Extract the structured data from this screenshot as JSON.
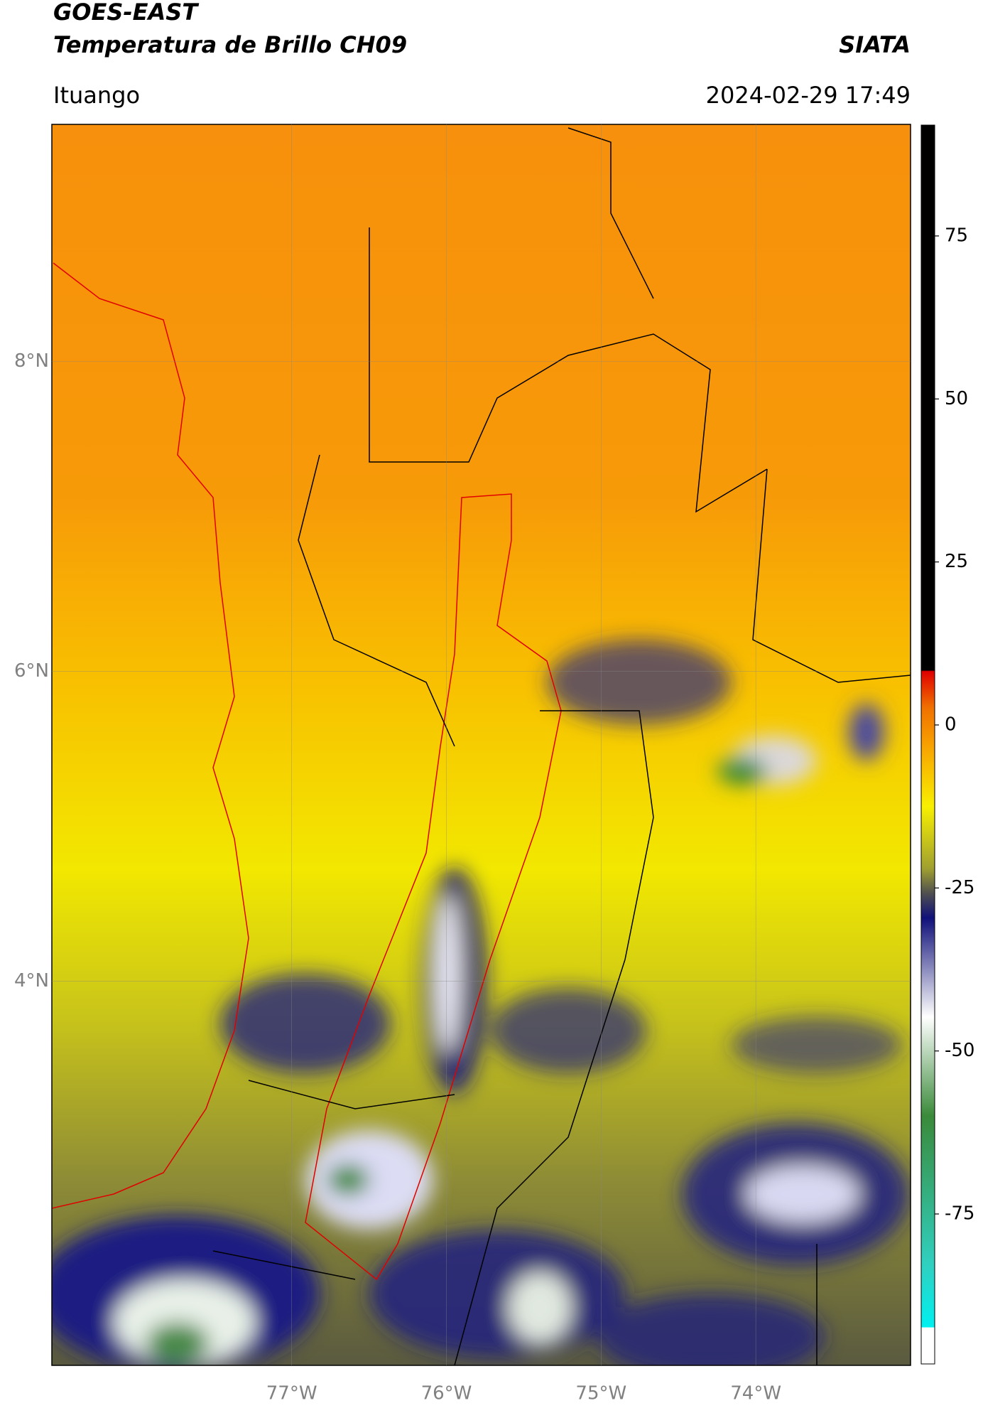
{
  "header": {
    "title": "GOES-EAST",
    "subtitle": "Temperatura de Brillo CH09",
    "brand": "SIATA",
    "location": "Ituango",
    "timestamp": "2024-02-29 17:49"
  },
  "map": {
    "xlim": [
      -78.55,
      -73.0
    ],
    "ylim": [
      1.52,
      9.53
    ],
    "xticks": [
      {
        "value": -77,
        "label": "77°W"
      },
      {
        "value": -76,
        "label": "76°W"
      },
      {
        "value": -75,
        "label": "75°W"
      },
      {
        "value": -74,
        "label": "74°W"
      }
    ],
    "yticks": [
      {
        "value": 8,
        "label": "8°N"
      },
      {
        "value": 6,
        "label": "6°N"
      },
      {
        "value": 4,
        "label": "4°N"
      }
    ],
    "grid": true
  },
  "colorbar": {
    "lim": [
      -98,
      92
    ],
    "ticks": [
      75,
      50,
      25,
      0,
      -25,
      -50,
      -75
    ]
  }
}
